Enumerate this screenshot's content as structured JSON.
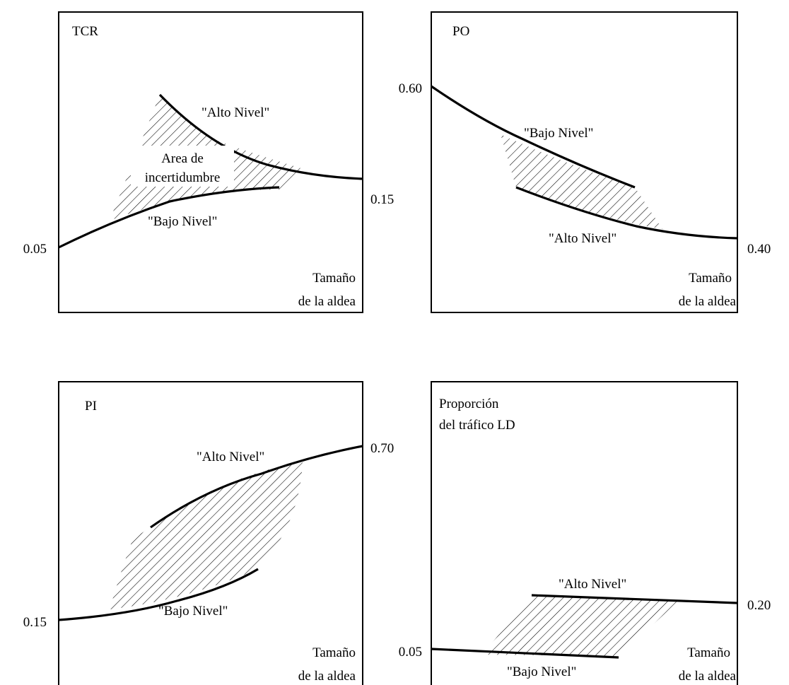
{
  "panels": {
    "tcr": {
      "title": "TCR",
      "left_value": "0.05",
      "right_value": "0.15",
      "high_label": "\"Alto Nivel\"",
      "low_label": "\"Bajo Nivel\"",
      "area_label_1": "Area de",
      "area_label_2": "incertidumbre",
      "x_label_1": "Tamaño",
      "x_label_2": "de la aldea"
    },
    "po": {
      "title": "PO",
      "left_value": "0.60",
      "right_value": "0.40",
      "low_label": "\"Bajo Nivel\"",
      "high_label": "\"Alto Nivel\"",
      "x_label_1": "Tamaño",
      "x_label_2": "de la aldea"
    },
    "pi": {
      "title": "PI",
      "left_value": "0.15",
      "right_value": "0.70",
      "high_label": "\"Alto Nivel\"",
      "low_label": "\"Bajo Nivel\"",
      "x_label_1": "Tamaño",
      "x_label_2": "de la aldea"
    },
    "ld": {
      "title_1": "Proporción",
      "title_2": "del tráfico LD",
      "left_value": "0.05",
      "right_value": "0.20",
      "high_label": "\"Alto Nivel\"",
      "low_label": "\"Bajo Nivel\"",
      "x_label_1": "Tamaño",
      "x_label_2": "de la aldea"
    }
  }
}
